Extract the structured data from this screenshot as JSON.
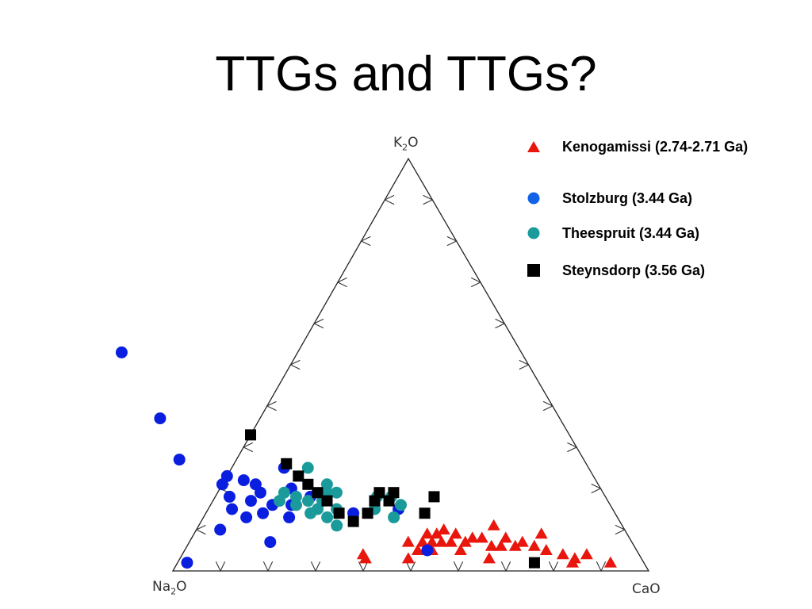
{
  "slide": {
    "title": "TTGs and TTGs?"
  },
  "chart_data": {
    "type": "scatter",
    "subtype": "ternary",
    "corners": {
      "top": "K2O",
      "left": "Na2O",
      "right": "CaO"
    },
    "corner_labels": {
      "top": {
        "main": "K",
        "sub": "2",
        "tail": "O"
      },
      "left": {
        "main": "Na",
        "sub": "2",
        "tail": "O"
      },
      "right": {
        "main": "CaO",
        "sub": "",
        "tail": ""
      }
    },
    "ticks_per_side": 9,
    "legend_placement": "top-right",
    "series": [
      {
        "name": "Kenogamissi (2.74-2.71 Ga)",
        "marker": "triangle",
        "color": "#e8160c",
        "points": [
          {
            "na2o": 0.58,
            "k2o": 0.04,
            "cao": 0.38
          },
          {
            "na2o": 0.58,
            "k2o": 0.03,
            "cao": 0.39
          },
          {
            "na2o": 0.49,
            "k2o": 0.03,
            "cao": 0.48
          },
          {
            "na2o": 0.47,
            "k2o": 0.07,
            "cao": 0.46
          },
          {
            "na2o": 0.46,
            "k2o": 0.05,
            "cao": 0.49
          },
          {
            "na2o": 0.44,
            "k2o": 0.07,
            "cao": 0.49
          },
          {
            "na2o": 0.43,
            "k2o": 0.05,
            "cao": 0.52
          },
          {
            "na2o": 0.42,
            "k2o": 0.09,
            "cao": 0.49
          },
          {
            "na2o": 0.42,
            "k2o": 0.07,
            "cao": 0.51
          },
          {
            "na2o": 0.4,
            "k2o": 0.09,
            "cao": 0.51
          },
          {
            "na2o": 0.4,
            "k2o": 0.07,
            "cao": 0.53
          },
          {
            "na2o": 0.38,
            "k2o": 0.1,
            "cao": 0.52
          },
          {
            "na2o": 0.38,
            "k2o": 0.07,
            "cao": 0.55
          },
          {
            "na2o": 0.37,
            "k2o": 0.05,
            "cao": 0.58
          },
          {
            "na2o": 0.36,
            "k2o": 0.09,
            "cao": 0.55
          },
          {
            "na2o": 0.35,
            "k2o": 0.07,
            "cao": 0.58
          },
          {
            "na2o": 0.33,
            "k2o": 0.08,
            "cao": 0.59
          },
          {
            "na2o": 0.32,
            "k2o": 0.03,
            "cao": 0.65
          },
          {
            "na2o": 0.31,
            "k2o": 0.08,
            "cao": 0.61
          },
          {
            "na2o": 0.3,
            "k2o": 0.06,
            "cao": 0.64
          },
          {
            "na2o": 0.28,
            "k2o": 0.06,
            "cao": 0.66
          },
          {
            "na2o": 0.27,
            "k2o": 0.11,
            "cao": 0.62
          },
          {
            "na2o": 0.26,
            "k2o": 0.08,
            "cao": 0.66
          },
          {
            "na2o": 0.25,
            "k2o": 0.06,
            "cao": 0.69
          },
          {
            "na2o": 0.23,
            "k2o": 0.07,
            "cao": 0.7
          },
          {
            "na2o": 0.21,
            "k2o": 0.06,
            "cao": 0.73
          },
          {
            "na2o": 0.19,
            "k2o": 0.05,
            "cao": 0.76
          },
          {
            "na2o": 0.18,
            "k2o": 0.09,
            "cao": 0.73
          },
          {
            "na2o": 0.16,
            "k2o": 0.04,
            "cao": 0.8
          },
          {
            "na2o": 0.15,
            "k2o": 0.02,
            "cao": 0.83
          },
          {
            "na2o": 0.14,
            "k2o": 0.03,
            "cao": 0.83
          },
          {
            "na2o": 0.11,
            "k2o": 0.04,
            "cao": 0.85
          },
          {
            "na2o": 0.07,
            "k2o": 0.02,
            "cao": 0.91
          }
        ]
      },
      {
        "name": "Stolzburg (3.44 Ga)",
        "marker": "circle",
        "color": "#0a1ee0",
        "points": [
          {
            "na2o": 0.84,
            "k2o": 0.53,
            "cao": -0.37
          },
          {
            "na2o": 0.84,
            "k2o": 0.37,
            "cao": -0.21
          },
          {
            "na2o": 0.85,
            "k2o": 0.27,
            "cao": -0.12
          },
          {
            "na2o": 0.79,
            "k2o": 0.21,
            "cao": 0.0
          },
          {
            "na2o": 0.77,
            "k2o": 0.23,
            "cao": 0.0
          },
          {
            "na2o": 0.74,
            "k2o": 0.22,
            "cao": 0.04
          },
          {
            "na2o": 0.72,
            "k2o": 0.21,
            "cao": 0.07
          },
          {
            "na2o": 0.79,
            "k2o": 0.18,
            "cao": 0.03
          },
          {
            "na2o": 0.8,
            "k2o": 0.15,
            "cao": 0.05
          },
          {
            "na2o": 0.78,
            "k2o": 0.13,
            "cao": 0.09
          },
          {
            "na2o": 0.75,
            "k2o": 0.17,
            "cao": 0.08
          },
          {
            "na2o": 0.74,
            "k2o": 0.14,
            "cao": 0.12
          },
          {
            "na2o": 0.72,
            "k2o": 0.19,
            "cao": 0.09
          },
          {
            "na2o": 0.71,
            "k2o": 0.16,
            "cao": 0.13
          },
          {
            "na2o": 0.69,
            "k2o": 0.13,
            "cao": 0.18
          },
          {
            "na2o": 0.67,
            "k2o": 0.16,
            "cao": 0.17
          },
          {
            "na2o": 0.65,
            "k2o": 0.2,
            "cao": 0.15
          },
          {
            "na2o": 0.64,
            "k2o": 0.25,
            "cao": 0.11
          },
          {
            "na2o": 0.62,
            "k2o": 0.18,
            "cao": 0.2
          },
          {
            "na2o": 0.85,
            "k2o": 0.1,
            "cao": 0.05
          },
          {
            "na2o": 0.76,
            "k2o": 0.07,
            "cao": 0.17
          },
          {
            "na2o": 0.96,
            "k2o": 0.02,
            "cao": 0.02
          },
          {
            "na2o": 0.55,
            "k2o": 0.14,
            "cao": 0.31
          },
          {
            "na2o": 0.45,
            "k2o": 0.15,
            "cao": 0.4
          },
          {
            "na2o": 0.44,
            "k2o": 0.05,
            "cao": 0.51
          }
        ]
      },
      {
        "name": "Theespruit (3.44 Ga)",
        "marker": "circle",
        "color": "#1a9a9a",
        "points": [
          {
            "na2o": 0.69,
            "k2o": 0.17,
            "cao": 0.14
          },
          {
            "na2o": 0.67,
            "k2o": 0.19,
            "cao": 0.14
          },
          {
            "na2o": 0.66,
            "k2o": 0.16,
            "cao": 0.18
          },
          {
            "na2o": 0.65,
            "k2o": 0.18,
            "cao": 0.17
          },
          {
            "na2o": 0.64,
            "k2o": 0.14,
            "cao": 0.22
          },
          {
            "na2o": 0.63,
            "k2o": 0.17,
            "cao": 0.2
          },
          {
            "na2o": 0.62,
            "k2o": 0.15,
            "cao": 0.23
          },
          {
            "na2o": 0.61,
            "k2o": 0.13,
            "cao": 0.26
          },
          {
            "na2o": 0.6,
            "k2o": 0.17,
            "cao": 0.23
          },
          {
            "na2o": 0.58,
            "k2o": 0.19,
            "cao": 0.23
          },
          {
            "na2o": 0.58,
            "k2o": 0.15,
            "cao": 0.27
          },
          {
            "na2o": 0.57,
            "k2o": 0.21,
            "cao": 0.22
          },
          {
            "na2o": 0.59,
            "k2o": 0.25,
            "cao": 0.16
          },
          {
            "na2o": 0.56,
            "k2o": 0.19,
            "cao": 0.25
          },
          {
            "na2o": 0.6,
            "k2o": 0.11,
            "cao": 0.29
          },
          {
            "na2o": 0.5,
            "k2o": 0.15,
            "cao": 0.35
          },
          {
            "na2o": 0.48,
            "k2o": 0.18,
            "cao": 0.34
          },
          {
            "na2o": 0.47,
            "k2o": 0.13,
            "cao": 0.4
          },
          {
            "na2o": 0.45,
            "k2o": 0.18,
            "cao": 0.37
          },
          {
            "na2o": 0.44,
            "k2o": 0.16,
            "cao": 0.4
          }
        ]
      },
      {
        "name": "Steynsdorp (3.56 Ga)",
        "marker": "square",
        "color": "#000000",
        "points": [
          {
            "na2o": 0.67,
            "k2o": 0.33,
            "cao": 0.0
          },
          {
            "na2o": 0.63,
            "k2o": 0.26,
            "cao": 0.11
          },
          {
            "na2o": 0.62,
            "k2o": 0.23,
            "cao": 0.15
          },
          {
            "na2o": 0.61,
            "k2o": 0.21,
            "cao": 0.18
          },
          {
            "na2o": 0.6,
            "k2o": 0.19,
            "cao": 0.21
          },
          {
            "na2o": 0.59,
            "k2o": 0.17,
            "cao": 0.24
          },
          {
            "na2o": 0.58,
            "k2o": 0.14,
            "cao": 0.28
          },
          {
            "na2o": 0.56,
            "k2o": 0.12,
            "cao": 0.32
          },
          {
            "na2o": 0.52,
            "k2o": 0.14,
            "cao": 0.34
          },
          {
            "na2o": 0.49,
            "k2o": 0.17,
            "cao": 0.34
          },
          {
            "na2o": 0.46,
            "k2o": 0.17,
            "cao": 0.37
          },
          {
            "na2o": 0.47,
            "k2o": 0.19,
            "cao": 0.34
          },
          {
            "na2o": 0.44,
            "k2o": 0.19,
            "cao": 0.37
          },
          {
            "na2o": 0.4,
            "k2o": 0.14,
            "cao": 0.46
          },
          {
            "na2o": 0.36,
            "k2o": 0.18,
            "cao": 0.46
          },
          {
            "na2o": 0.23,
            "k2o": 0.02,
            "cao": 0.75
          }
        ]
      }
    ]
  }
}
